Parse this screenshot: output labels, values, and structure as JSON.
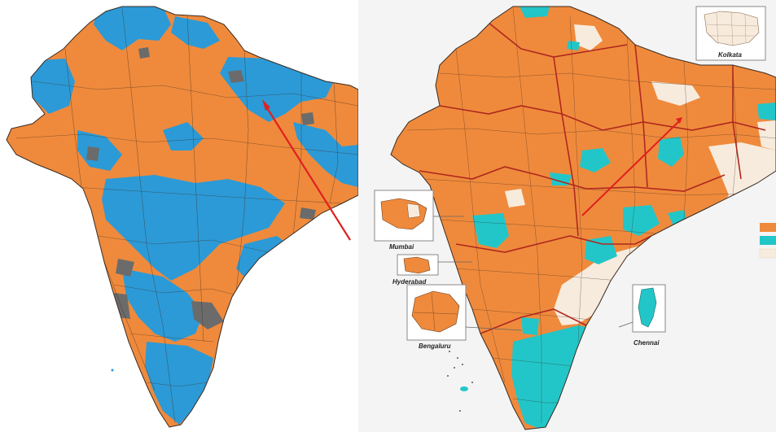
{
  "colors": {
    "saffron": "#ef8a3c",
    "blue": "#2c9ad6",
    "grey": "#6b6b6b",
    "teal": "#22c6c8",
    "cream": "#f7ebdd",
    "boundary": "#3a2a20",
    "state_line": "#b0281f",
    "arrow": "#e02020"
  },
  "left_map": {
    "name": "constituency-map-blue-saffron"
  },
  "right_map": {
    "name": "constituency-map-teal-saffron",
    "insets": [
      {
        "id": "kolkata",
        "label": "Kolkata"
      },
      {
        "id": "mumbai",
        "label": "Mumbai"
      },
      {
        "id": "hyderabad",
        "label": "Hyderabad"
      },
      {
        "id": "bengaluru",
        "label": "Bengaluru"
      },
      {
        "id": "chennai",
        "label": "Chennai"
      }
    ],
    "legend": [
      {
        "color": "#ef8a3c",
        "icon": "legend-swatch-saffron"
      },
      {
        "color": "#22c6c8",
        "icon": "legend-swatch-teal"
      },
      {
        "color": "#f7ebdd",
        "icon": "legend-swatch-cream"
      }
    ]
  }
}
